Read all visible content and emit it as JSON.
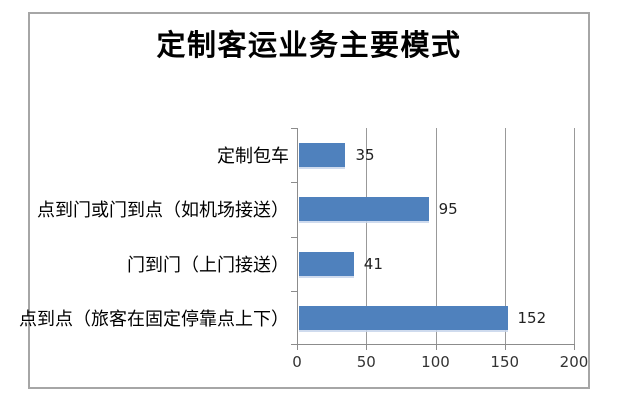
{
  "chart": {
    "bar_color": "#4F81BD",
    "bar_shadow_color": "#c7d5eb",
    "grid_color": "#999999",
    "axis_color": "#8c8c8c",
    "frame_border_color": "#a6a6a6",
    "title_color": "#000000",
    "value_label_color": "#222222",
    "tick_label_color": "#333333",
    "background": "#ffffff"
  },
  "chart_data": {
    "type": "bar",
    "orientation": "horizontal",
    "title": "定制客运业务主要模式",
    "categories": [
      "定制包车",
      "点到门或门到点（如机场接送）",
      "门到门（上门接送）",
      "点到点（旅客在固定停靠点上下）"
    ],
    "values": [
      35,
      95,
      41,
      152
    ],
    "data_labels": [
      "35",
      "95",
      "41",
      "152"
    ],
    "xlim": [
      0,
      200
    ],
    "xticks": [
      0,
      50,
      100,
      150,
      200
    ],
    "xtick_labels": [
      "0",
      "50",
      "100",
      "150",
      "200"
    ],
    "grid": true,
    "legend": false,
    "ylabel": "",
    "xlabel": ""
  }
}
